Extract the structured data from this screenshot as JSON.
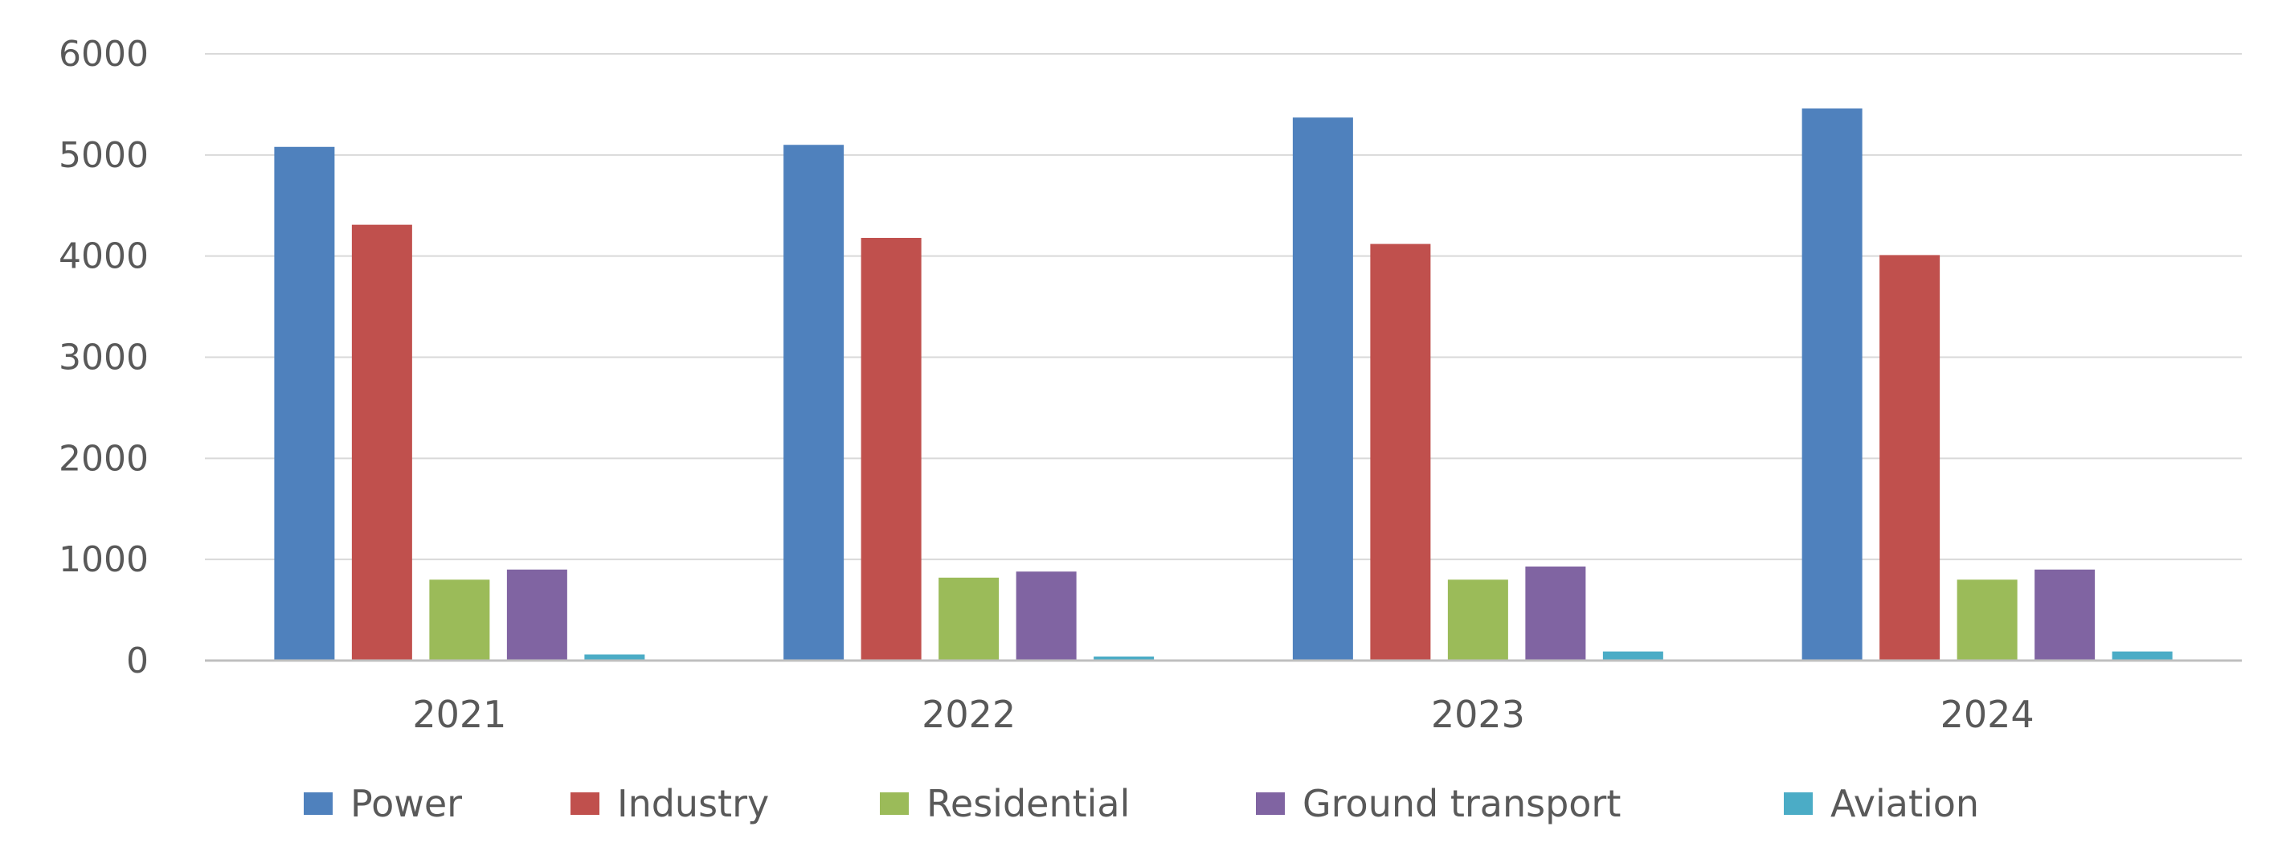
{
  "chart_data": {
    "type": "bar",
    "categories": [
      "2021",
      "2022",
      "2023",
      "2024"
    ],
    "series": [
      {
        "name": "Power",
        "color": "#4F81BD",
        "values": [
          5080,
          5100,
          5370,
          5460
        ]
      },
      {
        "name": "Industry",
        "color": "#C0504D",
        "values": [
          4310,
          4180,
          4120,
          4010
        ]
      },
      {
        "name": "Residential",
        "color": "#9BBB59",
        "values": [
          800,
          820,
          800,
          800
        ]
      },
      {
        "name": "Ground transport",
        "color": "#8064A2",
        "values": [
          900,
          880,
          930,
          900
        ]
      },
      {
        "name": "Aviation",
        "color": "#4BACC6",
        "values": [
          60,
          40,
          90,
          90
        ]
      }
    ],
    "yticks": [
      "0",
      "1000",
      "2000",
      "3000",
      "4000",
      "5000",
      "6000"
    ],
    "ylim": [
      0,
      6000
    ],
    "grid": true,
    "legend_position": "bottom"
  }
}
